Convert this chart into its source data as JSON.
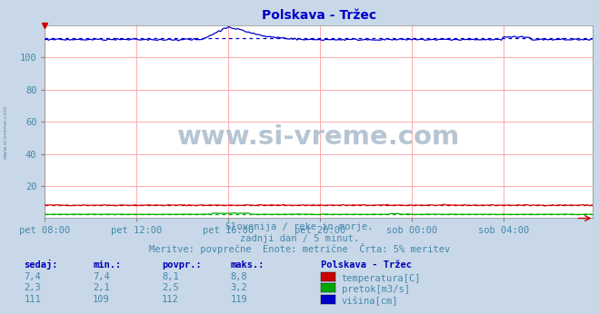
{
  "title": "Polskava - Tržec",
  "bg_color": "#c8d8e8",
  "plot_bg_color": "#ffffff",
  "grid_color": "#ffaaaa",
  "title_color": "#0000cc",
  "title_fontsize": 10,
  "tick_color": "#4488aa",
  "tick_fontsize": 7.5,
  "x_ticks_labels": [
    "pet 08:00",
    "pet 12:00",
    "pet 16:00",
    "pet 20:00",
    "sob 00:00",
    "sob 04:00"
  ],
  "x_ticks_pos": [
    0,
    48,
    96,
    144,
    192,
    240
  ],
  "ylim": [
    0,
    120
  ],
  "yticks": [
    20,
    40,
    60,
    80,
    100
  ],
  "n_points": 288,
  "temperatura_color": "#cc0000",
  "pretok_color": "#00aa00",
  "visina_color": "#0000cc",
  "temp_avg": 8.1,
  "temp_min": 7.4,
  "temp_max": 8.8,
  "pretok_avg": 2.5,
  "pretok_min": 2.1,
  "pretok_max": 3.2,
  "visina_avg": 112,
  "visina_min": 109,
  "visina_max": 119,
  "subtitle1": "Slovenija / reke in morje.",
  "subtitle2": "zadnji dan / 5 minut.",
  "subtitle3": "Meritve: povprečne  Enote: metrične  Črta: 5% meritev",
  "legend_title": "Polskava - Tržec",
  "legend_items": [
    "temperatura[C]",
    "pretok[m3/s]",
    "višina[cm]"
  ],
  "legend_colors": [
    "#cc0000",
    "#00aa00",
    "#0000cc"
  ],
  "table_headers": [
    "sedaj:",
    "min.:",
    "povpr.:",
    "maks.:"
  ],
  "table_data": [
    [
      "7,4",
      "7,4",
      "8,1",
      "8,8"
    ],
    [
      "2,3",
      "2,1",
      "2,5",
      "3,2"
    ],
    [
      "111",
      "109",
      "112",
      "119"
    ]
  ],
  "watermark": "www.si-vreme.com",
  "watermark_color": "#aabbcc",
  "left_label": "www.si-vreme.com",
  "header_color": "#0000bb",
  "val_color": "#4488aa",
  "subtitle_color": "#4488aa"
}
